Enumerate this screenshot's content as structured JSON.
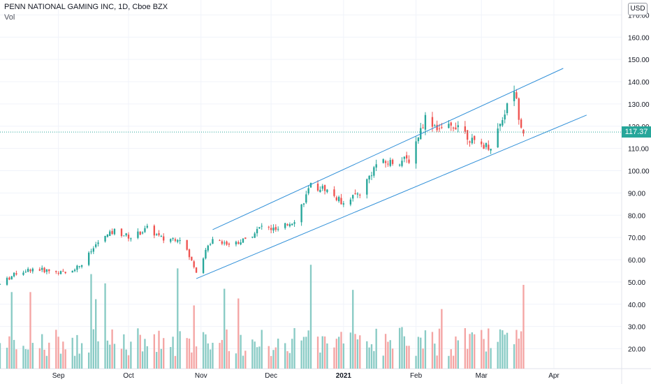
{
  "header": {
    "title": "PENN NATIONAL GAMING INC, 1D, Cboe BZX",
    "volume_label": "Vol"
  },
  "currency_button": "USD",
  "last_price": "117.37",
  "colors": {
    "up": "#26a69a",
    "down": "#ef5350",
    "up_volume": "#89cbc5",
    "down_volume": "#f4a5a4",
    "channel": "#2f8fd8",
    "price_line": "#26a69a",
    "grid": "#f0f3fa"
  },
  "chart_data": {
    "type": "candlestick",
    "symbol": "PENN NATIONAL GAMING INC",
    "interval": "1D",
    "exchange": "Cboe BZX",
    "ylim": [
      10,
      175
    ],
    "y_ticks": [
      "20.00",
      "30.00",
      "40.00",
      "50.00",
      "60.00",
      "70.00",
      "80.00",
      "90.00",
      "100.00",
      "110.00",
      "120.00",
      "130.00",
      "140.00",
      "150.00",
      "160.00",
      "170.00"
    ],
    "x_ticks": [
      {
        "label": "Sep",
        "date": "2020-09-01"
      },
      {
        "label": "Oct",
        "date": "2020-10-01"
      },
      {
        "label": "Nov",
        "date": "2020-11-01"
      },
      {
        "label": "Dec",
        "date": "2020-12-01"
      },
      {
        "label": "2021",
        "date": "2021-01-01"
      },
      {
        "label": "Feb",
        "date": "2021-02-01"
      },
      {
        "label": "Mar",
        "date": "2021-03-01"
      },
      {
        "label": "Apr",
        "date": "2021-04-01"
      }
    ],
    "x_range": [
      "2020-08-07",
      "2021-04-30"
    ],
    "channel_lines": [
      {
        "start": {
          "date": "2020-11-06",
          "price": 73.5
        },
        "end": {
          "date": "2021-04-05",
          "price": 146
        }
      },
      {
        "start": {
          "date": "2020-10-30",
          "price": 51.5
        },
        "end": {
          "date": "2021-04-15",
          "price": 125
        }
      }
    ],
    "last_price": 117.37,
    "close_series": [
      [
        "2020-08-07",
        49
      ],
      [
        "2020-08-14",
        54
      ],
      [
        "2020-08-21",
        56
      ],
      [
        "2020-08-28",
        55
      ],
      [
        "2020-09-04",
        54
      ],
      [
        "2020-09-11",
        58
      ],
      [
        "2020-09-18",
        68
      ],
      [
        "2020-09-25",
        73
      ],
      [
        "2020-10-02",
        70
      ],
      [
        "2020-10-09",
        74
      ],
      [
        "2020-10-16",
        69
      ],
      [
        "2020-10-23",
        70
      ],
      [
        "2020-10-30",
        55
      ],
      [
        "2020-11-06",
        70
      ],
      [
        "2020-11-13",
        67
      ],
      [
        "2020-11-20",
        69
      ],
      [
        "2020-11-27",
        75
      ],
      [
        "2020-12-04",
        73
      ],
      [
        "2020-12-11",
        78
      ],
      [
        "2020-12-18",
        93
      ],
      [
        "2020-12-24",
        92
      ],
      [
        "2020-12-31",
        86
      ],
      [
        "2021-01-08",
        90
      ],
      [
        "2021-01-15",
        103
      ],
      [
        "2021-01-22",
        104
      ],
      [
        "2021-01-29",
        105
      ],
      [
        "2021-02-05",
        124
      ],
      [
        "2021-02-12",
        118
      ],
      [
        "2021-02-19",
        121
      ],
      [
        "2021-02-26",
        112
      ],
      [
        "2021-03-05",
        111
      ],
      [
        "2021-03-12",
        129
      ],
      [
        "2021-03-15",
        137
      ],
      [
        "2021-03-17",
        125
      ],
      [
        "2021-03-19",
        117.37
      ]
    ],
    "volume_last": "≈52M (spike on last session)"
  }
}
